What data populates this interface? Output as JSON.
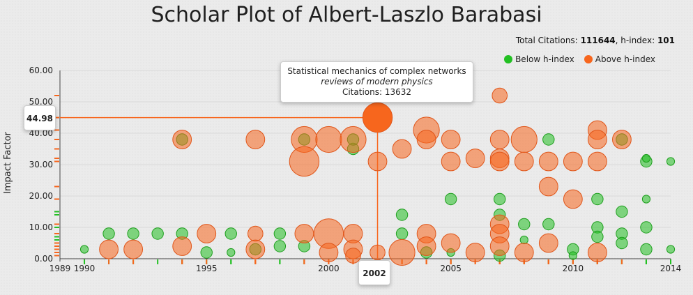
{
  "title": "Scholar Plot of Albert-Laszlo Barabasi",
  "stats": {
    "total_citations_label": "Total Citations:",
    "total_citations": "111644",
    "hindex_label": ", h-index:",
    "hindex": "101"
  },
  "legend": {
    "below": {
      "label": "Below h-index",
      "color": "#22c022"
    },
    "above": {
      "label": "Above h-index",
      "color": "#f7661d"
    }
  },
  "tooltip": {
    "title": "Statistical mechanics of complex networks",
    "journal": "reviews of modern physics",
    "citations": "Citations: 13632"
  },
  "highlight": {
    "year_label": "2002",
    "value_label": "44.98",
    "x": 2002,
    "y": 44.98
  },
  "chart_data": {
    "type": "scatter",
    "title": "Scholar Plot of Albert-Laszlo Barabasi",
    "ylabel": "Impact Factor",
    "xlabel": "",
    "xlim": [
      1989,
      2014
    ],
    "ylim": [
      0,
      60
    ],
    "xticks": [
      1989,
      1990,
      1995,
      2000,
      2005,
      2010,
      2014
    ],
    "yticks": [
      "0.00",
      "10.00",
      "20.00",
      "30.00",
      "40.00",
      "50.00",
      "60.00"
    ],
    "grid": true,
    "series": [
      {
        "name": "Below h-index",
        "points": [
          {
            "x": 1990,
            "y": 3,
            "size": 1
          },
          {
            "x": 1991,
            "y": 8,
            "size": 2
          },
          {
            "x": 1992,
            "y": 8,
            "size": 2
          },
          {
            "x": 1993,
            "y": 8,
            "size": 2
          },
          {
            "x": 1994,
            "y": 8,
            "size": 2
          },
          {
            "x": 1994,
            "y": 38,
            "size": 2
          },
          {
            "x": 1995,
            "y": 2,
            "size": 2
          },
          {
            "x": 1996,
            "y": 2,
            "size": 1
          },
          {
            "x": 1996,
            "y": 8,
            "size": 2
          },
          {
            "x": 1997,
            "y": 3,
            "size": 2
          },
          {
            "x": 1998,
            "y": 8,
            "size": 2
          },
          {
            "x": 1998,
            "y": 4,
            "size": 2
          },
          {
            "x": 1999,
            "y": 4,
            "size": 2
          },
          {
            "x": 1999,
            "y": 38,
            "size": 2
          },
          {
            "x": 2001,
            "y": 35,
            "size": 2
          },
          {
            "x": 2001,
            "y": 38,
            "size": 2
          },
          {
            "x": 2003,
            "y": 8,
            "size": 2
          },
          {
            "x": 2003,
            "y": 14,
            "size": 2
          },
          {
            "x": 2004,
            "y": 2,
            "size": 2
          },
          {
            "x": 2005,
            "y": 19,
            "size": 2
          },
          {
            "x": 2005,
            "y": 2,
            "size": 1
          },
          {
            "x": 2007,
            "y": 1,
            "size": 2
          },
          {
            "x": 2007,
            "y": 14,
            "size": 2
          },
          {
            "x": 2007,
            "y": 19,
            "size": 2
          },
          {
            "x": 2008,
            "y": 11,
            "size": 2
          },
          {
            "x": 2008,
            "y": 6,
            "size": 1
          },
          {
            "x": 2009,
            "y": 11,
            "size": 2
          },
          {
            "x": 2009,
            "y": 38,
            "size": 2
          },
          {
            "x": 2010,
            "y": 3,
            "size": 2
          },
          {
            "x": 2010,
            "y": 1,
            "size": 1
          },
          {
            "x": 2011,
            "y": 19,
            "size": 2
          },
          {
            "x": 2011,
            "y": 10,
            "size": 2
          },
          {
            "x": 2011,
            "y": 7,
            "size": 2
          },
          {
            "x": 2012,
            "y": 15,
            "size": 2
          },
          {
            "x": 2012,
            "y": 8,
            "size": 2
          },
          {
            "x": 2012,
            "y": 5,
            "size": 2
          },
          {
            "x": 2012,
            "y": 38,
            "size": 2
          },
          {
            "x": 2013,
            "y": 31,
            "size": 2
          },
          {
            "x": 2013,
            "y": 10,
            "size": 2
          },
          {
            "x": 2013,
            "y": 3,
            "size": 2
          },
          {
            "x": 2013,
            "y": 32,
            "size": 1
          },
          {
            "x": 2013,
            "y": 19,
            "size": 1
          },
          {
            "x": 2014,
            "y": 31,
            "size": 1
          },
          {
            "x": 2014,
            "y": 3,
            "size": 1
          }
        ]
      },
      {
        "name": "Above h-index",
        "points": [
          {
            "x": 1991,
            "y": 3,
            "size": 4
          },
          {
            "x": 1992,
            "y": 3,
            "size": 4
          },
          {
            "x": 1994,
            "y": 38,
            "size": 4
          },
          {
            "x": 1994,
            "y": 4,
            "size": 4
          },
          {
            "x": 1995,
            "y": 8,
            "size": 4
          },
          {
            "x": 1997,
            "y": 38,
            "size": 4
          },
          {
            "x": 1997,
            "y": 8,
            "size": 3
          },
          {
            "x": 1997,
            "y": 3,
            "size": 4
          },
          {
            "x": 1999,
            "y": 38,
            "size": 6
          },
          {
            "x": 1999,
            "y": 31,
            "size": 7
          },
          {
            "x": 1999,
            "y": 8,
            "size": 4
          },
          {
            "x": 2000,
            "y": 38,
            "size": 6
          },
          {
            "x": 2000,
            "y": 8,
            "size": 7
          },
          {
            "x": 2000,
            "y": 2,
            "size": 4
          },
          {
            "x": 2001,
            "y": 38,
            "size": 6
          },
          {
            "x": 2001,
            "y": 8,
            "size": 4
          },
          {
            "x": 2001,
            "y": 3,
            "size": 4
          },
          {
            "x": 2001,
            "y": 1,
            "size": 3
          },
          {
            "x": 2002,
            "y": 44.98,
            "size": 7
          },
          {
            "x": 2002,
            "y": 31,
            "size": 4
          },
          {
            "x": 2002,
            "y": 2,
            "size": 3
          },
          {
            "x": 2003,
            "y": 35,
            "size": 4
          },
          {
            "x": 2003,
            "y": 2,
            "size": 6
          },
          {
            "x": 2004,
            "y": 41,
            "size": 6
          },
          {
            "x": 2004,
            "y": 38,
            "size": 4
          },
          {
            "x": 2004,
            "y": 8,
            "size": 4
          },
          {
            "x": 2004,
            "y": 4,
            "size": 4
          },
          {
            "x": 2005,
            "y": 38,
            "size": 4
          },
          {
            "x": 2005,
            "y": 31,
            "size": 4
          },
          {
            "x": 2005,
            "y": 5,
            "size": 4
          },
          {
            "x": 2006,
            "y": 32,
            "size": 4
          },
          {
            "x": 2006,
            "y": 2,
            "size": 4
          },
          {
            "x": 2007,
            "y": 52,
            "size": 3
          },
          {
            "x": 2007,
            "y": 38,
            "size": 4
          },
          {
            "x": 2007,
            "y": 32,
            "size": 4
          },
          {
            "x": 2007,
            "y": 31,
            "size": 4
          },
          {
            "x": 2007,
            "y": 11,
            "size": 4
          },
          {
            "x": 2007,
            "y": 8,
            "size": 4
          },
          {
            "x": 2007,
            "y": 4,
            "size": 4
          },
          {
            "x": 2008,
            "y": 38,
            "size": 6
          },
          {
            "x": 2008,
            "y": 31,
            "size": 4
          },
          {
            "x": 2008,
            "y": 2,
            "size": 4
          },
          {
            "x": 2009,
            "y": 31,
            "size": 4
          },
          {
            "x": 2009,
            "y": 23,
            "size": 4
          },
          {
            "x": 2009,
            "y": 5,
            "size": 4
          },
          {
            "x": 2010,
            "y": 31,
            "size": 4
          },
          {
            "x": 2010,
            "y": 19,
            "size": 4
          },
          {
            "x": 2011,
            "y": 41,
            "size": 4
          },
          {
            "x": 2011,
            "y": 38,
            "size": 4
          },
          {
            "x": 2011,
            "y": 31,
            "size": 4
          },
          {
            "x": 2011,
            "y": 2,
            "size": 4
          },
          {
            "x": 2012,
            "y": 38,
            "size": 4
          }
        ]
      }
    ]
  }
}
